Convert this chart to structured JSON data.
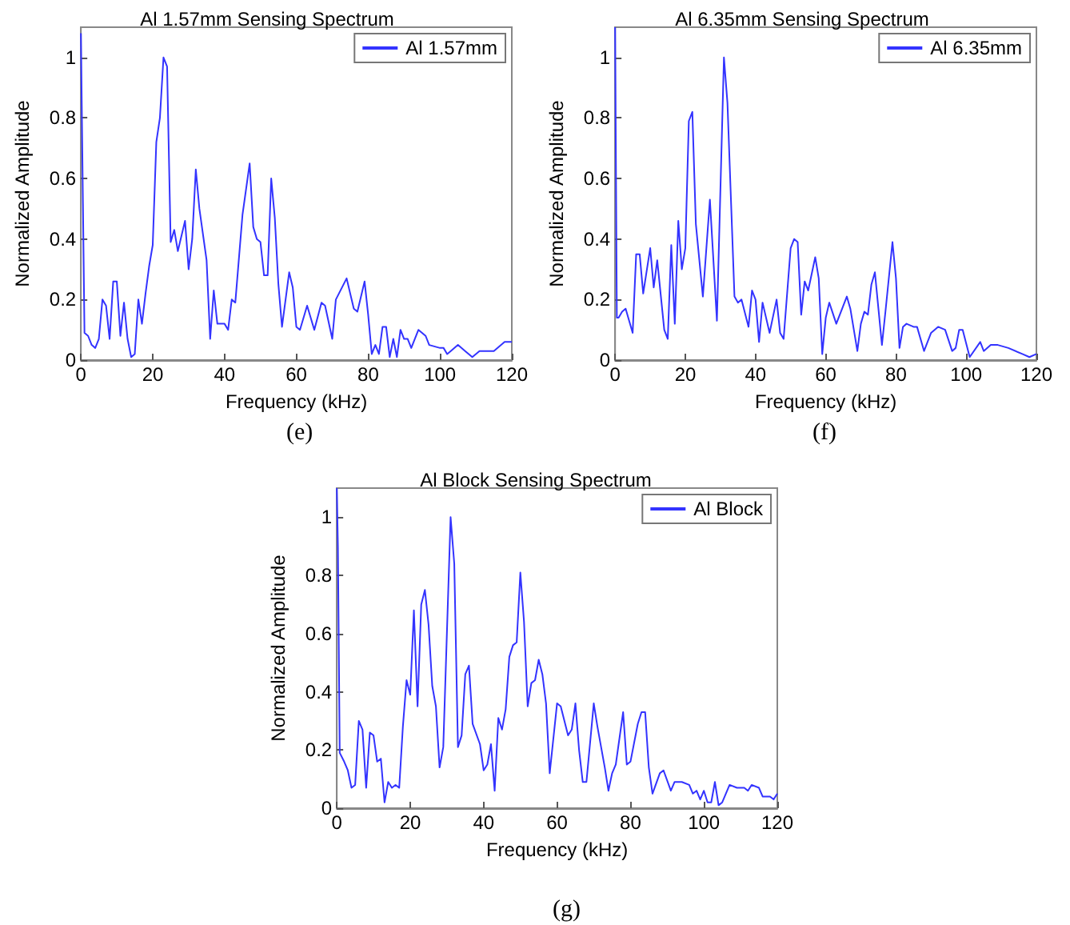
{
  "chart_data": [
    {
      "type": "line",
      "title": "Al 1.57mm Sensing Spectrum",
      "xlabel": "Frequency (kHz)",
      "ylabel": "Normalized Amplitude",
      "annotations": [
        "(e)"
      ],
      "legend": "top right",
      "grid": false,
      "xlim": [
        0,
        120
      ],
      "xticks": [
        0,
        20,
        40,
        60,
        80,
        100,
        120
      ],
      "ylim": [
        0,
        1.1
      ],
      "yticks": [
        0,
        0.2,
        0.4,
        0.6,
        0.8,
        1
      ],
      "x": [
        0,
        1,
        2,
        3,
        4,
        5,
        6,
        7,
        8,
        9,
        10,
        11,
        12,
        13,
        14,
        15,
        16,
        17,
        18,
        19,
        20,
        21,
        22,
        23,
        24,
        25,
        26,
        27,
        29,
        30,
        31,
        32,
        33,
        35,
        36,
        37,
        38,
        40,
        41,
        42,
        43,
        45,
        47,
        48,
        49,
        50,
        51,
        52,
        53,
        54,
        55,
        56,
        58,
        59,
        60,
        61,
        63,
        65,
        67,
        68,
        70,
        71,
        74,
        76,
        77,
        79,
        80,
        81,
        82,
        83,
        84,
        85,
        86,
        87,
        88,
        89,
        90,
        91,
        92,
        94,
        96,
        97,
        100,
        101,
        102,
        103,
        105,
        107,
        109,
        111,
        113,
        115,
        118,
        120
      ],
      "series": [
        {
          "name": "Al 1.57mm",
          "color": "#3333ff",
          "values": [
            1.08,
            0.09,
            0.08,
            0.05,
            0.04,
            0.07,
            0.2,
            0.18,
            0.07,
            0.26,
            0.26,
            0.08,
            0.19,
            0.07,
            0.01,
            0.02,
            0.2,
            0.12,
            0.22,
            0.31,
            0.38,
            0.72,
            0.8,
            1.0,
            0.97,
            0.39,
            0.43,
            0.36,
            0.46,
            0.3,
            0.4,
            0.63,
            0.5,
            0.33,
            0.07,
            0.23,
            0.12,
            0.12,
            0.1,
            0.2,
            0.19,
            0.48,
            0.65,
            0.44,
            0.4,
            0.39,
            0.28,
            0.28,
            0.6,
            0.47,
            0.25,
            0.11,
            0.29,
            0.24,
            0.11,
            0.1,
            0.18,
            0.1,
            0.19,
            0.18,
            0.07,
            0.2,
            0.27,
            0.17,
            0.16,
            0.26,
            0.15,
            0.02,
            0.05,
            0.02,
            0.11,
            0.11,
            0.01,
            0.07,
            0.01,
            0.1,
            0.07,
            0.07,
            0.04,
            0.1,
            0.08,
            0.05,
            0.04,
            0.04,
            0.02,
            0.03,
            0.05,
            0.03,
            0.01,
            0.03,
            0.03,
            0.03,
            0.06,
            0.06
          ]
        }
      ]
    },
    {
      "type": "line",
      "title": "Al 6.35mm Sensing Spectrum",
      "xlabel": "Frequency (kHz)",
      "ylabel": "Normalized Amplitude",
      "annotations": [
        "(f)"
      ],
      "legend": "top right",
      "grid": false,
      "xlim": [
        0,
        120
      ],
      "xticks": [
        0,
        20,
        40,
        60,
        80,
        100,
        120
      ],
      "ylim": [
        0,
        1.1
      ],
      "yticks": [
        0,
        0.2,
        0.4,
        0.6,
        0.8,
        1
      ],
      "x": [
        0,
        0.5,
        1,
        2,
        3,
        5,
        6,
        7,
        8,
        10,
        11,
        12,
        14,
        15,
        16,
        17,
        18,
        19,
        20,
        21,
        22,
        23,
        25,
        27,
        29,
        31,
        32,
        33,
        34,
        35,
        36,
        38,
        39,
        40,
        41,
        42,
        44,
        46,
        47,
        48,
        50,
        51,
        52,
        53,
        54,
        55,
        57,
        58,
        59,
        60,
        61,
        63,
        66,
        67,
        69,
        70,
        71,
        72,
        73,
        74,
        76,
        77,
        79,
        80,
        81,
        82,
        83,
        85,
        86,
        88,
        90,
        92,
        94,
        96,
        97,
        98,
        99,
        101,
        104,
        105,
        107,
        109,
        112,
        116,
        118,
        120
      ],
      "series": [
        {
          "name": "Al 6.35mm",
          "color": "#3333ff",
          "values": [
            1.1,
            0.14,
            0.14,
            0.16,
            0.17,
            0.09,
            0.35,
            0.35,
            0.22,
            0.37,
            0.24,
            0.33,
            0.1,
            0.07,
            0.38,
            0.12,
            0.46,
            0.3,
            0.37,
            0.79,
            0.82,
            0.45,
            0.21,
            0.53,
            0.13,
            1.0,
            0.85,
            0.53,
            0.21,
            0.19,
            0.2,
            0.11,
            0.23,
            0.2,
            0.06,
            0.19,
            0.09,
            0.2,
            0.09,
            0.07,
            0.37,
            0.4,
            0.39,
            0.15,
            0.26,
            0.23,
            0.34,
            0.27,
            0.02,
            0.14,
            0.19,
            0.12,
            0.21,
            0.17,
            0.03,
            0.12,
            0.16,
            0.15,
            0.25,
            0.29,
            0.05,
            0.16,
            0.39,
            0.27,
            0.04,
            0.11,
            0.12,
            0.11,
            0.11,
            0.03,
            0.09,
            0.11,
            0.1,
            0.03,
            0.04,
            0.1,
            0.1,
            0.01,
            0.06,
            0.03,
            0.05,
            0.05,
            0.04,
            0.02,
            0.01,
            0.02
          ]
        }
      ]
    },
    {
      "type": "line",
      "title": "Al Block Sensing Spectrum",
      "xlabel": "Frequency (kHz)",
      "ylabel": "Normalized Amplitude",
      "annotations": [
        "(g)"
      ],
      "legend": "top right",
      "grid": false,
      "xlim": [
        0,
        120
      ],
      "xticks": [
        0,
        20,
        40,
        60,
        80,
        100,
        120
      ],
      "ylim": [
        0,
        1.1
      ],
      "yticks": [
        0,
        0.2,
        0.4,
        0.6,
        0.8,
        1
      ],
      "x": [
        0,
        0.3,
        0.8,
        2,
        3,
        4,
        5,
        6,
        7,
        8,
        9,
        10,
        11,
        12,
        13,
        14,
        15,
        16,
        17,
        18,
        19,
        20,
        21,
        22,
        23,
        24,
        25,
        26,
        27,
        28,
        29,
        31,
        32,
        33,
        34,
        35,
        36,
        37,
        39,
        40,
        41,
        42,
        43,
        44,
        45,
        46,
        47,
        48,
        49,
        50,
        51,
        52,
        53,
        54,
        55,
        56,
        57,
        58,
        60,
        61,
        63,
        64,
        65,
        66,
        67,
        68,
        70,
        71,
        73,
        74,
        75,
        76,
        78,
        79,
        80,
        82,
        83,
        84,
        85,
        86,
        88,
        89,
        91,
        92,
        94,
        96,
        97,
        98,
        99,
        100,
        101,
        102,
        103,
        104,
        105,
        107,
        109,
        111,
        112,
        113,
        115,
        116,
        118,
        119,
        120
      ],
      "series": [
        {
          "name": "Al Block",
          "color": "#3333ff",
          "values": [
            1.1,
            0.9,
            0.19,
            0.16,
            0.13,
            0.07,
            0.08,
            0.3,
            0.27,
            0.07,
            0.26,
            0.25,
            0.16,
            0.17,
            0.02,
            0.09,
            0.07,
            0.08,
            0.07,
            0.28,
            0.44,
            0.39,
            0.68,
            0.35,
            0.7,
            0.75,
            0.63,
            0.42,
            0.35,
            0.14,
            0.21,
            1.0,
            0.84,
            0.21,
            0.25,
            0.46,
            0.49,
            0.29,
            0.22,
            0.13,
            0.15,
            0.22,
            0.06,
            0.31,
            0.27,
            0.34,
            0.52,
            0.56,
            0.57,
            0.81,
            0.64,
            0.35,
            0.43,
            0.44,
            0.51,
            0.46,
            0.36,
            0.12,
            0.36,
            0.35,
            0.25,
            0.27,
            0.36,
            0.2,
            0.09,
            0.09,
            0.36,
            0.28,
            0.14,
            0.06,
            0.12,
            0.15,
            0.33,
            0.15,
            0.16,
            0.29,
            0.33,
            0.33,
            0.14,
            0.05,
            0.12,
            0.13,
            0.06,
            0.09,
            0.09,
            0.08,
            0.05,
            0.06,
            0.03,
            0.06,
            0.02,
            0.02,
            0.09,
            0.01,
            0.02,
            0.08,
            0.07,
            0.07,
            0.06,
            0.08,
            0.07,
            0.04,
            0.04,
            0.03,
            0.05
          ]
        }
      ]
    }
  ]
}
